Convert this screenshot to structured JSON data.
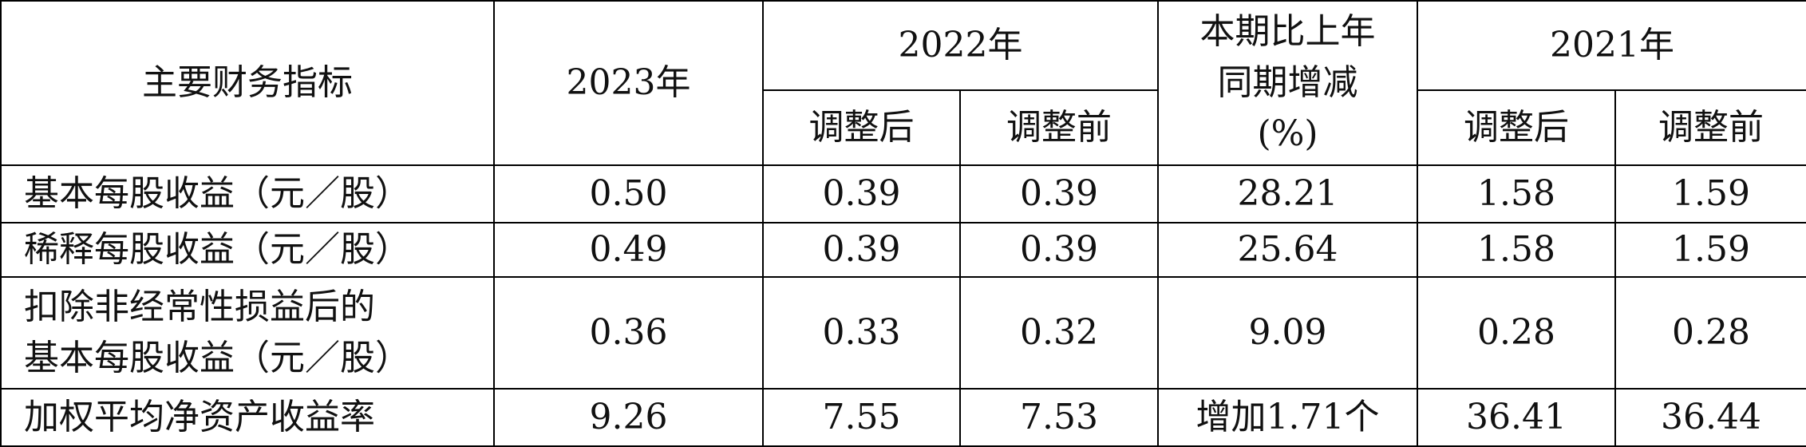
{
  "table": {
    "header": {
      "indicator": "主要财务指标",
      "year_2023": "2023年",
      "year_2022": "2022年",
      "change": [
        "本期比上年",
        "同期增减",
        "(%)"
      ],
      "year_2021": "2021年",
      "sub_2022": [
        "调整后",
        "调整前"
      ],
      "sub_2021": [
        "调整后",
        "调整前"
      ]
    },
    "rows": [
      {
        "label": [
          "基本每股收益（元／股）"
        ],
        "cells": [
          "0.50",
          "0.39",
          "0.39",
          "28.21",
          "1.58",
          "1.59"
        ]
      },
      {
        "label": [
          "稀释每股收益（元／股）"
        ],
        "cells": [
          "0.49",
          "0.39",
          "0.39",
          "25.64",
          "1.58",
          "1.59"
        ]
      },
      {
        "label": [
          "扣除非经常性损益后的",
          "基本每股收益（元／股）"
        ],
        "cells": [
          "0.36",
          "0.33",
          "0.32",
          "9.09",
          "0.28",
          "0.28"
        ]
      },
      {
        "label": [
          "加权平均净资产收益率"
        ],
        "cells": [
          "9.26",
          "7.55",
          "7.53",
          "增加1.71个",
          "36.41",
          "36.44"
        ]
      }
    ]
  }
}
